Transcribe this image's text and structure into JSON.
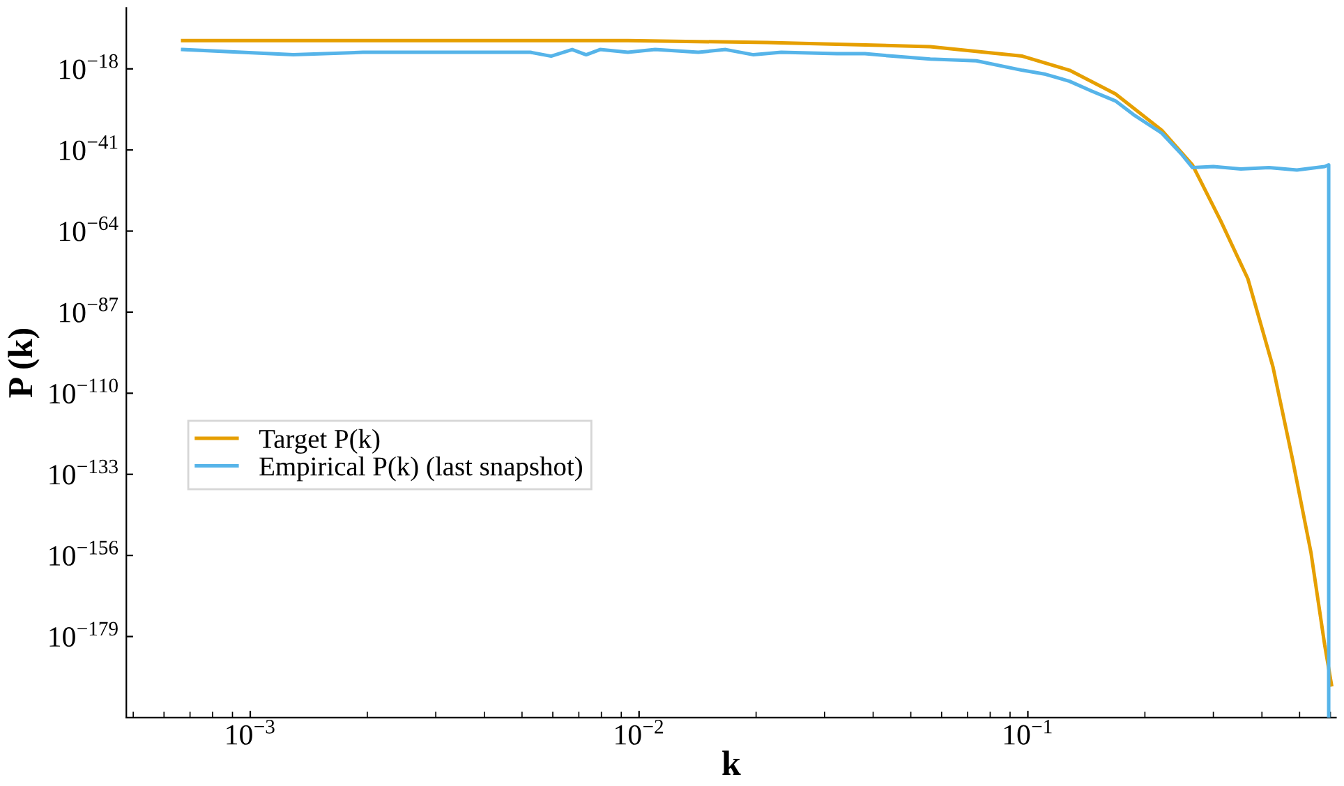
{
  "chart_data": {
    "type": "line",
    "xlabel": "k",
    "ylabel": "P (k)",
    "log": "xy",
    "grid": false,
    "legend": "left",
    "line_style": "solid",
    "marker": "none",
    "xlim": [
      0.00048,
      0.62
    ],
    "ylim": [
      1e-202,
      0.2
    ],
    "xticks": [
      {
        "value": 0.001,
        "label": "10$^{−3}$"
      },
      {
        "value": 0.01,
        "label": "10$^{−2}$"
      },
      {
        "value": 0.1,
        "label": "10$^{−1}$"
      }
    ],
    "yticks": [
      {
        "value": 1e-18,
        "label": "10$^{−18}$"
      },
      {
        "value": 1e-41,
        "label": "10$^{−41}$"
      },
      {
        "value": 1e-64,
        "label": "10$^{−64}$"
      },
      {
        "value": 1e-87,
        "label": "10$^{−87}$"
      },
      {
        "value": 1e-110,
        "label": "10$^{−110}$"
      },
      {
        "value": 1e-133,
        "label": "10$^{−133}$"
      },
      {
        "value": 1e-156,
        "label": "10$^{−156}$"
      },
      {
        "value": 1e-179,
        "label": "10$^{−179}$"
      }
    ],
    "series": [
      {
        "name": "Target P(k)",
        "color": "#e69f00",
        "x": [
          0.00067,
          0.00272,
          0.00936,
          0.0214,
          0.0323,
          0.0561,
          0.0968,
          0.128,
          0.168,
          0.221,
          0.265,
          0.313,
          0.368,
          0.427,
          0.48,
          0.535,
          0.58,
          0.604
        ],
        "values": [
          1e-10,
          1e-10,
          1e-10,
          3e-11,
          1e-11,
          2e-12,
          4e-15,
          4e-19,
          8e-26,
          4e-36,
          6e-46,
          1e-61,
          3e-78,
          3e-103,
          1e-129,
          5e-156,
          4e-182,
          2e-193
        ]
      },
      {
        "name": "Empirical P(k) (last snapshot)",
        "color": "#56b4e9",
        "x": [
          0.00067,
          0.00129,
          0.00195,
          0.00272,
          0.00525,
          0.00594,
          0.00673,
          0.00731,
          0.00794,
          0.00936,
          0.011,
          0.0142,
          0.0167,
          0.0197,
          0.0232,
          0.0323,
          0.0381,
          0.0449,
          0.0561,
          0.0737,
          0.0968,
          0.111,
          0.128,
          0.146,
          0.168,
          0.187,
          0.221,
          0.248,
          0.265,
          0.3,
          0.353,
          0.417,
          0.492,
          0.58,
          0.594,
          0.594
        ],
        "values": [
          3e-13,
          1e-14,
          5e-14,
          5e-14,
          5e-14,
          4e-15,
          3e-13,
          1e-14,
          3e-13,
          5e-14,
          3e-13,
          5e-14,
          3e-13,
          1e-14,
          5e-14,
          2e-14,
          2e-14,
          4e-15,
          6e-16,
          2e-16,
          4e-19,
          3e-20,
          3e-22,
          5e-25,
          8e-28,
          1e-31,
          6e-37,
          8e-43,
          1e-46,
          2e-46,
          4e-47,
          1e-46,
          2e-47,
          2e-46,
          6e-46,
          1e-202
        ]
      }
    ]
  }
}
